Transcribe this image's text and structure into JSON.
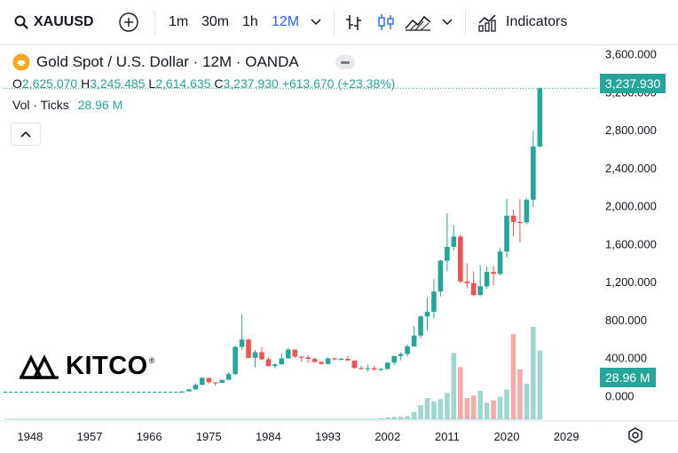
{
  "toolbar": {
    "symbol": "XAUUSD",
    "intervals": [
      "1m",
      "30m",
      "1h",
      "12M"
    ],
    "active_interval": "12M",
    "indicators_label": "Indicators"
  },
  "legend": {
    "title": "Gold Spot / U.S. Dollar · 12M · OANDA",
    "ohlc": {
      "o_label": "O",
      "o": "2,625.070",
      "h_label": "H",
      "h": "3,245.485",
      "l_label": "L",
      "l": "2,614.635",
      "c_label": "C",
      "c": "3,237.930",
      "change": "+613.670 (+23.38%)"
    },
    "volume_label": "Vol · Ticks",
    "volume_value": "28.96 M"
  },
  "price_badge": "3,237.930",
  "volume_badge": "28.96 M",
  "colors": {
    "up": "#26a69a",
    "down": "#ef5350",
    "up_vol": "#9fd7d0",
    "down_vol": "#f5a9a8",
    "accent": "#2962ff"
  },
  "chart_data": {
    "type": "candlestick",
    "y_ticks": [
      "3,600.000",
      "3,200.000",
      "2,800.000",
      "2,400.000",
      "2,000.000",
      "1,600.000",
      "1,200.000",
      "800.000",
      "400.000",
      "0.000"
    ],
    "y_tick_values": [
      3600,
      3200,
      2800,
      2400,
      2000,
      1600,
      1200,
      800,
      400,
      0
    ],
    "x_ticks": [
      "1948",
      "1957",
      "1966",
      "1975",
      "1984",
      "1993",
      "2002",
      "2011",
      "2020",
      "2029"
    ],
    "x_tick_values": [
      1948,
      1957,
      1966,
      1975,
      1984,
      1993,
      2002,
      2011,
      2020,
      2029
    ],
    "ylim": [
      -250,
      3700
    ],
    "xlim": [
      1944,
      2033
    ],
    "flat_line": {
      "from_year": 1944,
      "to_year": 1970,
      "value": 35
    },
    "candles": [
      {
        "year": 1971,
        "o": 37,
        "h": 44,
        "l": 37,
        "c": 43
      },
      {
        "year": 1972,
        "o": 43,
        "h": 70,
        "l": 43,
        "c": 64
      },
      {
        "year": 1973,
        "o": 64,
        "h": 127,
        "l": 64,
        "c": 112
      },
      {
        "year": 1974,
        "o": 112,
        "h": 197,
        "l": 112,
        "c": 186
      },
      {
        "year": 1975,
        "o": 186,
        "h": 186,
        "l": 128,
        "c": 140
      },
      {
        "year": 1976,
        "o": 140,
        "h": 140,
        "l": 103,
        "c": 134
      },
      {
        "year": 1977,
        "o": 134,
        "h": 168,
        "l": 129,
        "c": 165
      },
      {
        "year": 1978,
        "o": 165,
        "h": 245,
        "l": 165,
        "c": 226
      },
      {
        "year": 1979,
        "o": 226,
        "h": 524,
        "l": 216,
        "c": 512
      },
      {
        "year": 1980,
        "o": 512,
        "h": 850,
        "l": 481,
        "c": 590
      },
      {
        "year": 1981,
        "o": 590,
        "h": 599,
        "l": 391,
        "c": 397
      },
      {
        "year": 1982,
        "o": 397,
        "h": 481,
        "l": 296,
        "c": 456
      },
      {
        "year": 1983,
        "o": 456,
        "h": 509,
        "l": 374,
        "c": 382
      },
      {
        "year": 1984,
        "o": 382,
        "h": 405,
        "l": 307,
        "c": 309
      },
      {
        "year": 1985,
        "o": 309,
        "h": 340,
        "l": 284,
        "c": 327
      },
      {
        "year": 1986,
        "o": 327,
        "h": 442,
        "l": 326,
        "c": 391
      },
      {
        "year": 1987,
        "o": 391,
        "h": 502,
        "l": 390,
        "c": 484
      },
      {
        "year": 1988,
        "o": 484,
        "h": 485,
        "l": 395,
        "c": 410
      },
      {
        "year": 1989,
        "o": 410,
        "h": 418,
        "l": 355,
        "c": 401
      },
      {
        "year": 1990,
        "o": 401,
        "h": 424,
        "l": 345,
        "c": 386
      },
      {
        "year": 1991,
        "o": 386,
        "h": 403,
        "l": 344,
        "c": 353
      },
      {
        "year": 1992,
        "o": 353,
        "h": 360,
        "l": 330,
        "c": 333
      },
      {
        "year": 1993,
        "o": 333,
        "h": 406,
        "l": 326,
        "c": 391
      },
      {
        "year": 1994,
        "o": 391,
        "h": 397,
        "l": 370,
        "c": 383
      },
      {
        "year": 1995,
        "o": 383,
        "h": 396,
        "l": 372,
        "c": 387
      },
      {
        "year": 1996,
        "o": 387,
        "h": 416,
        "l": 367,
        "c": 369
      },
      {
        "year": 1997,
        "o": 369,
        "h": 369,
        "l": 283,
        "c": 290
      },
      {
        "year": 1998,
        "o": 290,
        "h": 313,
        "l": 273,
        "c": 288
      },
      {
        "year": 1999,
        "o": 288,
        "h": 325,
        "l": 252,
        "c": 288
      },
      {
        "year": 2000,
        "o": 288,
        "h": 316,
        "l": 263,
        "c": 273
      },
      {
        "year": 2001,
        "o": 273,
        "h": 293,
        "l": 255,
        "c": 279
      },
      {
        "year": 2002,
        "o": 279,
        "h": 350,
        "l": 277,
        "c": 347
      },
      {
        "year": 2003,
        "o": 347,
        "h": 418,
        "l": 320,
        "c": 416
      },
      {
        "year": 2004,
        "o": 416,
        "h": 455,
        "l": 372,
        "c": 438
      },
      {
        "year": 2005,
        "o": 438,
        "h": 538,
        "l": 411,
        "c": 517
      },
      {
        "year": 2006,
        "o": 517,
        "h": 730,
        "l": 515,
        "c": 632
      },
      {
        "year": 2007,
        "o": 632,
        "h": 845,
        "l": 603,
        "c": 834
      },
      {
        "year": 2008,
        "o": 834,
        "h": 1033,
        "l": 681,
        "c": 882
      },
      {
        "year": 2009,
        "o": 882,
        "h": 1227,
        "l": 810,
        "c": 1096
      },
      {
        "year": 2010,
        "o": 1096,
        "h": 1431,
        "l": 1044,
        "c": 1421
      },
      {
        "year": 2011,
        "o": 1421,
        "h": 1921,
        "l": 1308,
        "c": 1566
      },
      {
        "year": 2012,
        "o": 1566,
        "h": 1796,
        "l": 1527,
        "c": 1675
      },
      {
        "year": 2013,
        "o": 1675,
        "h": 1694,
        "l": 1180,
        "c": 1202
      },
      {
        "year": 2014,
        "o": 1202,
        "h": 1392,
        "l": 1131,
        "c": 1184
      },
      {
        "year": 2015,
        "o": 1184,
        "h": 1308,
        "l": 1046,
        "c": 1060
      },
      {
        "year": 2016,
        "o": 1060,
        "h": 1375,
        "l": 1046,
        "c": 1151
      },
      {
        "year": 2017,
        "o": 1151,
        "h": 1358,
        "l": 1124,
        "c": 1303
      },
      {
        "year": 2018,
        "o": 1303,
        "h": 1366,
        "l": 1160,
        "c": 1282
      },
      {
        "year": 2019,
        "o": 1282,
        "h": 1557,
        "l": 1266,
        "c": 1517
      },
      {
        "year": 2020,
        "o": 1517,
        "h": 2075,
        "l": 1451,
        "c": 1895
      },
      {
        "year": 2021,
        "o": 1895,
        "h": 1959,
        "l": 1677,
        "c": 1829
      },
      {
        "year": 2022,
        "o": 1829,
        "h": 2070,
        "l": 1615,
        "c": 1824
      },
      {
        "year": 2023,
        "o": 1824,
        "h": 2078,
        "l": 1805,
        "c": 2063
      },
      {
        "year": 2024,
        "o": 2063,
        "h": 2790,
        "l": 1985,
        "c": 2625
      },
      {
        "year": 2025,
        "o": 2625,
        "h": 3245,
        "l": 2615,
        "c": 3238
      }
    ],
    "volume": {
      "years": [
        2001,
        2002,
        2003,
        2004,
        2005,
        2006,
        2007,
        2008,
        2009,
        2010,
        2011,
        2012,
        2013,
        2014,
        2015,
        2016,
        2017,
        2018,
        2019,
        2020,
        2021,
        2022,
        2023,
        2024,
        2025
      ],
      "values": [
        0.4,
        0.8,
        1.0,
        1.1,
        1.3,
        3.0,
        6.0,
        9.0,
        7.5,
        8.5,
        11.0,
        28.0,
        22.0,
        9.0,
        10.0,
        12.0,
        7.0,
        8.0,
        9.5,
        12.5,
        36.0,
        21.0,
        15.0,
        39.0,
        28.96
      ],
      "max_display": 42
    }
  }
}
